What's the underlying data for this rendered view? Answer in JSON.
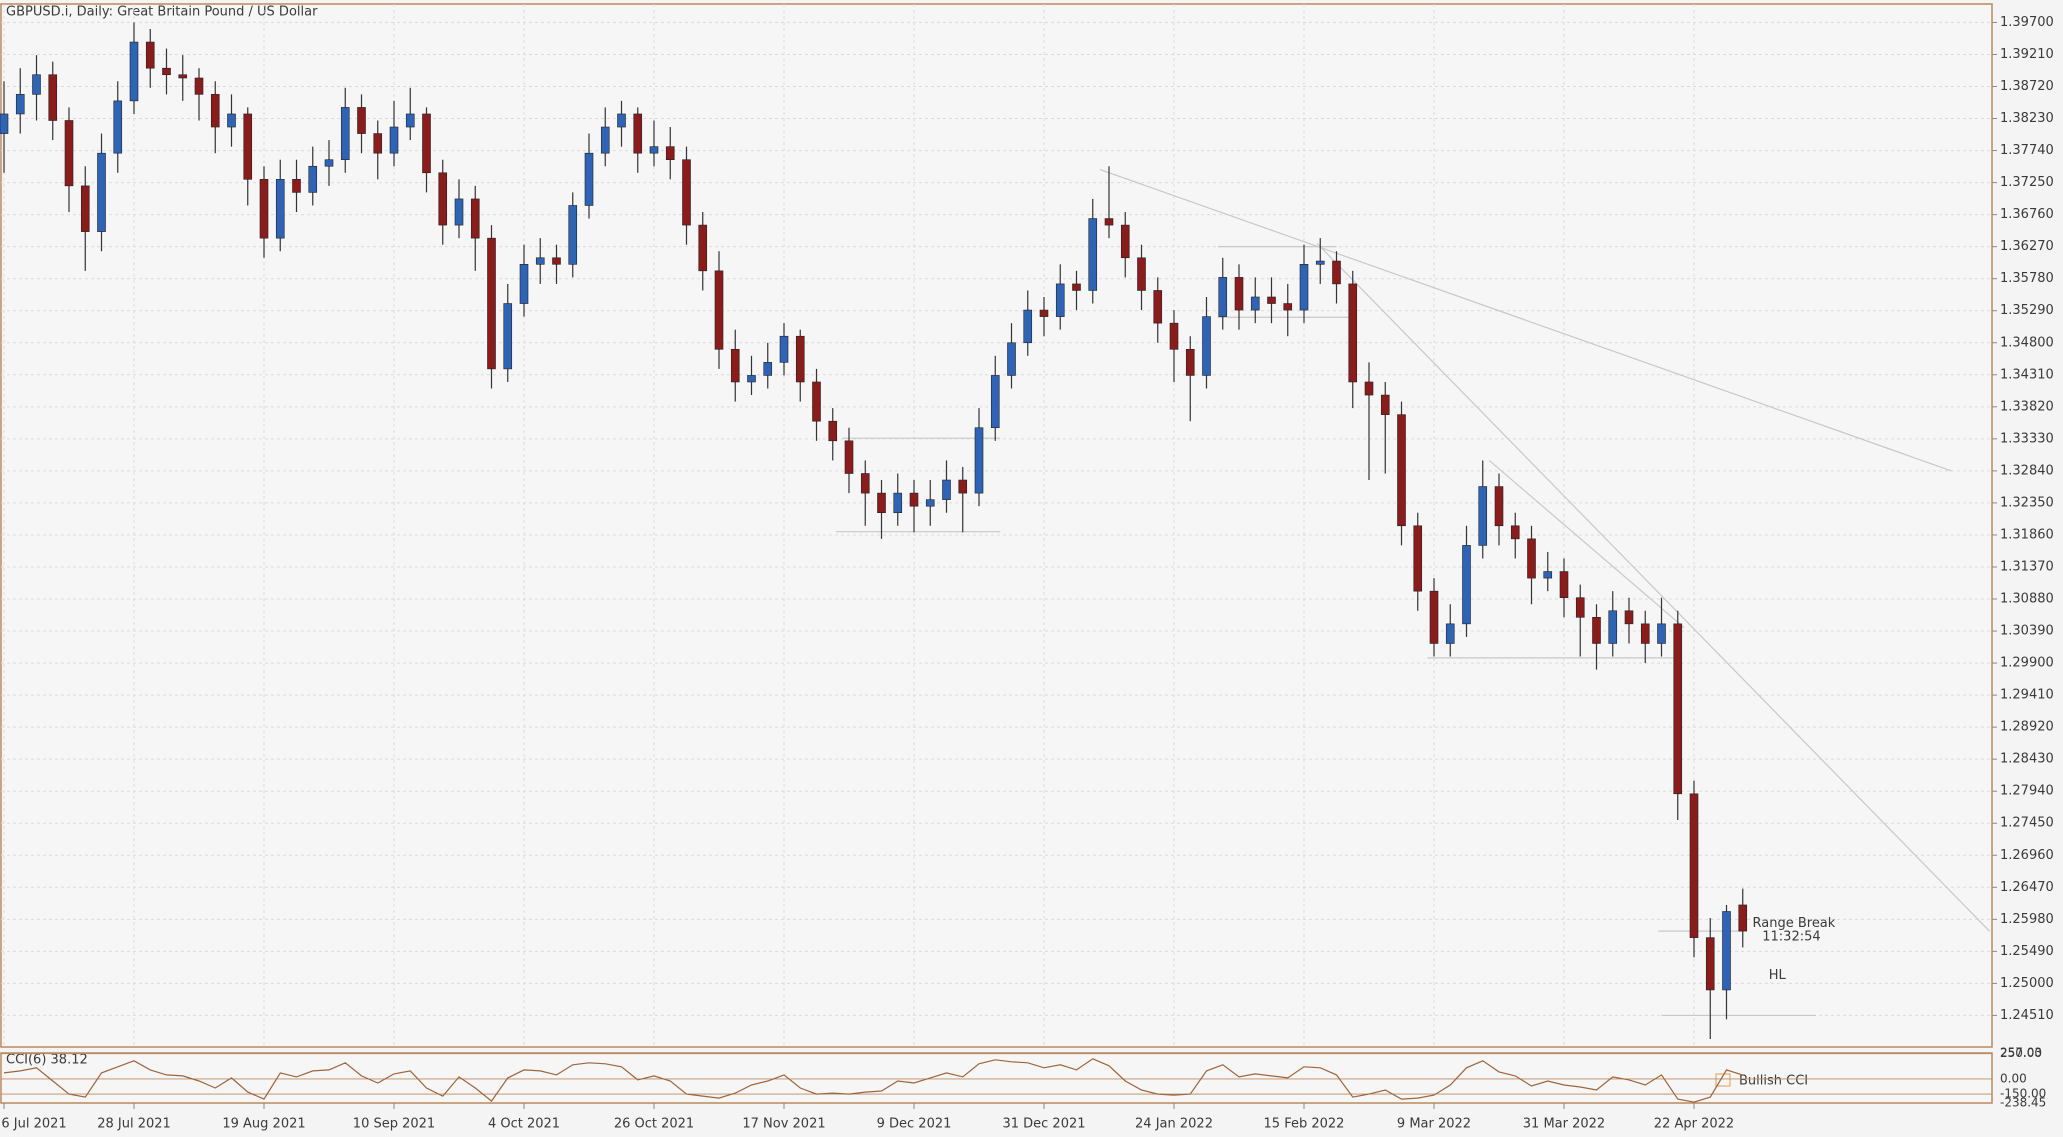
{
  "chart_data": {
    "type": "candlestick",
    "title": "GBPUSD.i, Daily:  Great Britain Pound / US Dollar",
    "up_color": "#2f63b5",
    "down_color": "#8a1c1c",
    "wick_color": "#333333",
    "line_color": "#c8c8c8",
    "grid": true,
    "ylim": [
      1.24027,
      1.39982
    ],
    "yticks": [
      {
        "value": 1.397,
        "label": "1.39700"
      },
      {
        "value": 1.3921,
        "label": "1.39210"
      },
      {
        "value": 1.3872,
        "label": "1.38720"
      },
      {
        "value": 1.3823,
        "label": "1.38230"
      },
      {
        "value": 1.3774,
        "label": "1.37740"
      },
      {
        "value": 1.3725,
        "label": "1.37250"
      },
      {
        "value": 1.3676,
        "label": "1.36760"
      },
      {
        "value": 1.3627,
        "label": "1.36270"
      },
      {
        "value": 1.3578,
        "label": "1.35780"
      },
      {
        "value": 1.3529,
        "label": "1.35290"
      },
      {
        "value": 1.348,
        "label": "1.34800"
      },
      {
        "value": 1.3431,
        "label": "1.34310"
      },
      {
        "value": 1.3382,
        "label": "1.33820"
      },
      {
        "value": 1.3333,
        "label": "1.33330"
      },
      {
        "value": 1.3284,
        "label": "1.32840"
      },
      {
        "value": 1.3235,
        "label": "1.32350"
      },
      {
        "value": 1.3186,
        "label": "1.31860"
      },
      {
        "value": 1.3137,
        "label": "1.31370"
      },
      {
        "value": 1.3088,
        "label": "1.30880"
      },
      {
        "value": 1.3039,
        "label": "1.30390"
      },
      {
        "value": 1.299,
        "label": "1.29900"
      },
      {
        "value": 1.2941,
        "label": "1.29410"
      },
      {
        "value": 1.2892,
        "label": "1.28920"
      },
      {
        "value": 1.2843,
        "label": "1.28430"
      },
      {
        "value": 1.2794,
        "label": "1.27940"
      },
      {
        "value": 1.2745,
        "label": "1.27450"
      },
      {
        "value": 1.2696,
        "label": "1.26960"
      },
      {
        "value": 1.2647,
        "label": "1.26470"
      },
      {
        "value": 1.2598,
        "label": "1.25980"
      },
      {
        "value": 1.2549,
        "label": "1.25490"
      },
      {
        "value": 1.25,
        "label": "1.25000"
      },
      {
        "value": 1.2451,
        "label": "1.24510"
      }
    ],
    "categories": [
      "6 Jul 2021",
      null,
      null,
      null,
      null,
      null,
      null,
      null,
      "28 Jul 2021",
      null,
      null,
      null,
      null,
      null,
      null,
      null,
      "19 Aug 2021",
      null,
      null,
      null,
      null,
      null,
      null,
      null,
      "10 Sep 2021",
      null,
      null,
      null,
      null,
      null,
      null,
      null,
      "4 Oct 2021",
      null,
      null,
      null,
      null,
      null,
      null,
      null,
      "26 Oct 2021",
      null,
      null,
      null,
      null,
      null,
      null,
      null,
      "17 Nov 2021",
      null,
      null,
      null,
      null,
      null,
      null,
      null,
      "9 Dec 2021",
      null,
      null,
      null,
      null,
      null,
      null,
      null,
      "31 Dec 2021",
      null,
      null,
      null,
      null,
      null,
      null,
      null,
      "24 Jan 2022",
      null,
      null,
      null,
      null,
      null,
      null,
      null,
      "15 Feb 2022",
      null,
      null,
      null,
      null,
      null,
      null,
      null,
      "9 Mar 2022",
      null,
      null,
      null,
      null,
      null,
      null,
      null,
      "31 Mar 2022",
      null,
      null,
      null,
      null,
      null,
      null,
      null,
      "22 Apr 2022",
      null,
      null,
      null
    ],
    "ohlc": [
      [
        1.38,
        1.388,
        1.374,
        1.383
      ],
      [
        1.383,
        1.39,
        1.38,
        1.386
      ],
      [
        1.386,
        1.392,
        1.382,
        1.389
      ],
      [
        1.389,
        1.391,
        1.379,
        1.382
      ],
      [
        1.382,
        1.384,
        1.368,
        1.372
      ],
      [
        1.372,
        1.375,
        1.359,
        1.365
      ],
      [
        1.365,
        1.38,
        1.362,
        1.377
      ],
      [
        1.377,
        1.388,
        1.374,
        1.385
      ],
      [
        1.385,
        1.397,
        1.383,
        1.394
      ],
      [
        1.394,
        1.396,
        1.387,
        1.39
      ],
      [
        1.39,
        1.393,
        1.386,
        1.389
      ],
      [
        1.389,
        1.392,
        1.385,
        1.3885
      ],
      [
        1.3885,
        1.39,
        1.382,
        1.386
      ],
      [
        1.386,
        1.388,
        1.377,
        1.381
      ],
      [
        1.381,
        1.386,
        1.378,
        1.383
      ],
      [
        1.383,
        1.384,
        1.369,
        1.373
      ],
      [
        1.373,
        1.375,
        1.361,
        1.364
      ],
      [
        1.364,
        1.376,
        1.362,
        1.373
      ],
      [
        1.373,
        1.376,
        1.368,
        1.371
      ],
      [
        1.371,
        1.378,
        1.369,
        1.375
      ],
      [
        1.375,
        1.379,
        1.372,
        1.376
      ],
      [
        1.376,
        1.387,
        1.374,
        1.384
      ],
      [
        1.384,
        1.386,
        1.377,
        1.38
      ],
      [
        1.38,
        1.382,
        1.373,
        1.377
      ],
      [
        1.377,
        1.385,
        1.375,
        1.381
      ],
      [
        1.381,
        1.387,
        1.379,
        1.383
      ],
      [
        1.383,
        1.384,
        1.371,
        1.374
      ],
      [
        1.374,
        1.376,
        1.363,
        1.366
      ],
      [
        1.366,
        1.373,
        1.364,
        1.37
      ],
      [
        1.37,
        1.372,
        1.359,
        1.364
      ],
      [
        1.364,
        1.366,
        1.341,
        1.344
      ],
      [
        1.344,
        1.357,
        1.342,
        1.354
      ],
      [
        1.354,
        1.363,
        1.352,
        1.36
      ],
      [
        1.36,
        1.364,
        1.357,
        1.361
      ],
      [
        1.361,
        1.363,
        1.357,
        1.36
      ],
      [
        1.36,
        1.371,
        1.358,
        1.369
      ],
      [
        1.369,
        1.38,
        1.367,
        1.377
      ],
      [
        1.377,
        1.384,
        1.375,
        1.381
      ],
      [
        1.381,
        1.385,
        1.378,
        1.383
      ],
      [
        1.383,
        1.384,
        1.374,
        1.377
      ],
      [
        1.377,
        1.382,
        1.375,
        1.378
      ],
      [
        1.378,
        1.381,
        1.373,
        1.376
      ],
      [
        1.376,
        1.378,
        1.363,
        1.366
      ],
      [
        1.366,
        1.368,
        1.356,
        1.359
      ],
      [
        1.359,
        1.362,
        1.344,
        1.347
      ],
      [
        1.347,
        1.35,
        1.339,
        1.342
      ],
      [
        1.342,
        1.346,
        1.34,
        1.343
      ],
      [
        1.343,
        1.348,
        1.341,
        1.345
      ],
      [
        1.345,
        1.351,
        1.343,
        1.349
      ],
      [
        1.349,
        1.35,
        1.339,
        1.342
      ],
      [
        1.342,
        1.344,
        1.333,
        1.336
      ],
      [
        1.336,
        1.338,
        1.33,
        1.333
      ],
      [
        1.333,
        1.335,
        1.325,
        1.328
      ],
      [
        1.328,
        1.33,
        1.32,
        1.325
      ],
      [
        1.325,
        1.327,
        1.318,
        1.322
      ],
      [
        1.322,
        1.328,
        1.32,
        1.325
      ],
      [
        1.325,
        1.327,
        1.319,
        1.323
      ],
      [
        1.323,
        1.327,
        1.32,
        1.324
      ],
      [
        1.324,
        1.33,
        1.322,
        1.327
      ],
      [
        1.327,
        1.329,
        1.319,
        1.325
      ],
      [
        1.325,
        1.338,
        1.323,
        1.335
      ],
      [
        1.335,
        1.346,
        1.333,
        1.343
      ],
      [
        1.343,
        1.351,
        1.341,
        1.348
      ],
      [
        1.348,
        1.356,
        1.346,
        1.353
      ],
      [
        1.353,
        1.355,
        1.349,
        1.352
      ],
      [
        1.352,
        1.36,
        1.35,
        1.357
      ],
      [
        1.357,
        1.359,
        1.353,
        1.356
      ],
      [
        1.356,
        1.37,
        1.354,
        1.367
      ],
      [
        1.367,
        1.375,
        1.364,
        1.366
      ],
      [
        1.366,
        1.368,
        1.358,
        1.361
      ],
      [
        1.361,
        1.363,
        1.353,
        1.356
      ],
      [
        1.356,
        1.358,
        1.348,
        1.351
      ],
      [
        1.351,
        1.353,
        1.342,
        1.347
      ],
      [
        1.347,
        1.349,
        1.336,
        1.343
      ],
      [
        1.343,
        1.355,
        1.341,
        1.352
      ],
      [
        1.352,
        1.361,
        1.35,
        1.358
      ],
      [
        1.358,
        1.36,
        1.35,
        1.353
      ],
      [
        1.353,
        1.358,
        1.351,
        1.355
      ],
      [
        1.355,
        1.358,
        1.351,
        1.354
      ],
      [
        1.354,
        1.357,
        1.349,
        1.353
      ],
      [
        1.353,
        1.363,
        1.351,
        1.36
      ],
      [
        1.36,
        1.364,
        1.357,
        1.3605
      ],
      [
        1.3605,
        1.362,
        1.354,
        1.357
      ],
      [
        1.357,
        1.359,
        1.338,
        1.342
      ],
      [
        1.342,
        1.345,
        1.327,
        1.34
      ],
      [
        1.34,
        1.342,
        1.328,
        1.337
      ],
      [
        1.337,
        1.339,
        1.317,
        1.32
      ],
      [
        1.32,
        1.322,
        1.307,
        1.31
      ],
      [
        1.31,
        1.312,
        1.3,
        1.302
      ],
      [
        1.302,
        1.308,
        1.3,
        1.305
      ],
      [
        1.305,
        1.32,
        1.303,
        1.317
      ],
      [
        1.317,
        1.33,
        1.315,
        1.326
      ],
      [
        1.326,
        1.328,
        1.317,
        1.32
      ],
      [
        1.32,
        1.322,
        1.315,
        1.318
      ],
      [
        1.318,
        1.32,
        1.308,
        1.312
      ],
      [
        1.312,
        1.316,
        1.31,
        1.313
      ],
      [
        1.313,
        1.315,
        1.306,
        1.309
      ],
      [
        1.309,
        1.311,
        1.3,
        1.306
      ],
      [
        1.306,
        1.308,
        1.298,
        1.302
      ],
      [
        1.302,
        1.31,
        1.3,
        1.307
      ],
      [
        1.307,
        1.309,
        1.302,
        1.305
      ],
      [
        1.305,
        1.307,
        1.299,
        1.302
      ],
      [
        1.302,
        1.309,
        1.3,
        1.305
      ],
      [
        1.305,
        1.307,
        1.275,
        1.279
      ],
      [
        1.279,
        1.281,
        1.254,
        1.257
      ],
      [
        1.257,
        1.26,
        1.2415,
        1.249
      ],
      [
        1.249,
        1.262,
        1.2445,
        1.261
      ],
      [
        1.262,
        1.2645,
        1.2555,
        1.258
      ]
    ],
    "lines": [
      [
        67.45,
        1.3745,
        119.84,
        1.3284
      ],
      [
        80.8,
        1.3632,
        122.2,
        1.25795
      ],
      [
        91.4,
        1.33,
        103.4,
        1.3044
      ],
      [
        74.7,
        1.3627,
        82.0,
        1.3627
      ],
      [
        51.6,
        1.3334,
        61.3,
        1.3334
      ],
      [
        51.2,
        1.3191,
        61.3,
        1.3191
      ],
      [
        87.6,
        1.2998,
        103.2,
        1.2998
      ],
      [
        101.8,
        1.258,
        107.0,
        1.258
      ],
      [
        102.0,
        1.2451,
        111.5,
        1.2451
      ],
      [
        74.7,
        1.3519,
        83.2,
        1.3519
      ]
    ],
    "annotations": [
      {
        "text": "Range Break",
        "index": 107.6,
        "price": 1.2592
      },
      {
        "text": "11:32:54",
        "index": 108.2,
        "price": 1.2571
      },
      {
        "text": "HL",
        "index": 108.6,
        "price": 1.2512
      }
    ],
    "cci": {
      "label": "CCI(6) 38.12",
      "color": "#a0643c",
      "signal": "Bullish CCI",
      "ylim": [
        -238.45,
        257.03
      ],
      "yticks": [
        257.03,
        {
          "value": 250,
          "label": "250.00"
        },
        {
          "value": 0,
          "label": "0.00"
        },
        {
          "value": -150,
          "label": "-150.00"
        },
        -238.45
      ],
      "values": [
        60,
        80,
        110,
        -20,
        -150,
        -180,
        60,
        120,
        180,
        90,
        40,
        30,
        -20,
        -90,
        10,
        -130,
        -200,
        60,
        20,
        80,
        90,
        160,
        30,
        -40,
        50,
        80,
        -90,
        -170,
        20,
        -90,
        -220,
        10,
        90,
        80,
        40,
        140,
        160,
        150,
        120,
        -10,
        30,
        -20,
        -150,
        -170,
        -190,
        -140,
        -60,
        -20,
        40,
        -90,
        -150,
        -140,
        -150,
        -130,
        -120,
        -20,
        -40,
        10,
        60,
        20,
        150,
        190,
        170,
        160,
        110,
        140,
        90,
        200,
        130,
        -20,
        -110,
        -150,
        -160,
        -150,
        80,
        140,
        20,
        50,
        30,
        10,
        120,
        110,
        40,
        -180,
        -150,
        -110,
        -200,
        -190,
        -160,
        -60,
        110,
        180,
        70,
        30,
        -70,
        -20,
        -60,
        -80,
        -110,
        20,
        -10,
        -60,
        40,
        -200,
        -230,
        -180,
        90,
        38.12
      ]
    }
  }
}
